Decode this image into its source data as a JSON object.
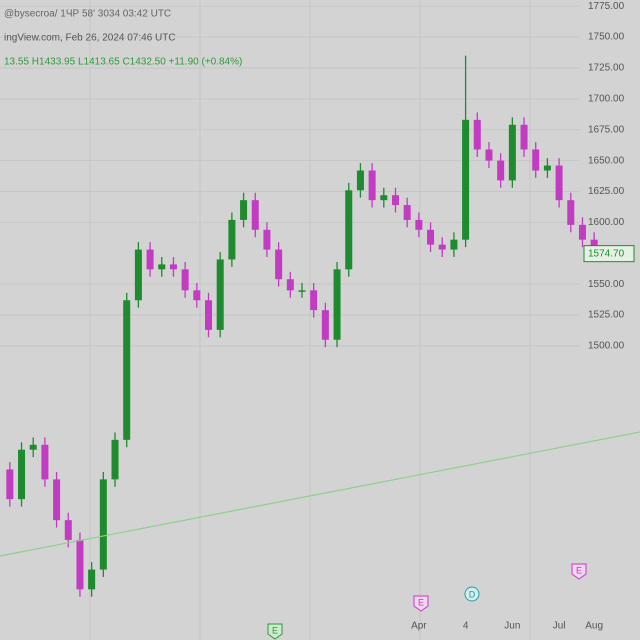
{
  "chart_data": {
    "type": "candlestick",
    "title": "ingView.com, Feb 26, 2024 07:46 UTC",
    "subtitle": "@bysecroa/ 1ЧР 58' 3034 03:42 UTC",
    "ohlc_text": "13.55 H1433.95 L1413.65 C1432.50 +11.90 (+0.84%)",
    "price_label": "1574.70",
    "up_color": "#1e8c2e",
    "down_color": "#c23cc2",
    "ylim": [
      1262,
      1780
    ],
    "yticks": [
      {
        "value": 1775,
        "label": "1775.00"
      },
      {
        "value": 1750,
        "label": "1750.00"
      },
      {
        "value": 1725,
        "label": "1725.00"
      },
      {
        "value": 1700,
        "label": "1700.00"
      },
      {
        "value": 1675,
        "label": "1675.00"
      },
      {
        "value": 1650,
        "label": "1650.00"
      },
      {
        "value": 1625,
        "label": "1625.00"
      },
      {
        "value": 1600,
        "label": "1600.00"
      },
      {
        "value": 1550,
        "label": "1550.00"
      },
      {
        "value": 1525,
        "label": "1525.00"
      },
      {
        "value": 1500,
        "label": "1500.00"
      }
    ],
    "grid": true,
    "categories": [
      null,
      null,
      null,
      null,
      null,
      null,
      null,
      null,
      null,
      null,
      null,
      null,
      null,
      null,
      null,
      null,
      null,
      null,
      null,
      null,
      null,
      null,
      null,
      null,
      null,
      null,
      null,
      null,
      null,
      null,
      null,
      null,
      null,
      null,
      null,
      "Apr",
      null,
      null,
      null,
      "4",
      null,
      null,
      null,
      "Jun",
      null,
      null,
      null,
      "Jul",
      null,
      null,
      "Aug"
    ],
    "open": [
      1400,
      1376,
      1416,
      1420,
      1392,
      1359,
      1343,
      1303,
      1319,
      1392,
      1424,
      1537,
      1578,
      1562,
      1566,
      1562,
      1545,
      1537,
      1513,
      1570,
      1602,
      1618,
      1594,
      1578,
      1554,
      1545,
      1545,
      1529,
      1505,
      1562,
      1626,
      1642,
      1618,
      1622,
      1614,
      1602,
      1594,
      1582,
      1578,
      1586,
      1683,
      1659,
      1650,
      1634,
      1679,
      1659,
      1642,
      1646,
      1618,
      1598,
      1586
    ],
    "high": [
      1406,
      1422,
      1426,
      1426,
      1398,
      1365,
      1349,
      1325,
      1398,
      1430,
      1543,
      1584,
      1584,
      1572,
      1572,
      1568,
      1551,
      1543,
      1576,
      1608,
      1624,
      1624,
      1600,
      1584,
      1560,
      1551,
      1551,
      1535,
      1568,
      1632,
      1648,
      1648,
      1628,
      1628,
      1620,
      1608,
      1600,
      1588,
      1592,
      1735,
      1689,
      1665,
      1656,
      1685,
      1685,
      1665,
      1652,
      1652,
      1624,
      1604,
      1592
    ],
    "low": [
      1370,
      1370,
      1410,
      1386,
      1353,
      1337,
      1297,
      1297,
      1313,
      1386,
      1418,
      1531,
      1556,
      1556,
      1556,
      1539,
      1531,
      1507,
      1507,
      1564,
      1596,
      1588,
      1572,
      1548,
      1539,
      1539,
      1523,
      1499,
      1499,
      1556,
      1620,
      1612,
      1612,
      1608,
      1596,
      1588,
      1576,
      1572,
      1572,
      1580,
      1653,
      1644,
      1628,
      1628,
      1653,
      1636,
      1636,
      1612,
      1592,
      1580,
      1568.7
    ],
    "close": [
      1376,
      1416,
      1420,
      1392,
      1359,
      1343,
      1303,
      1319,
      1392,
      1424,
      1537,
      1578,
      1562,
      1566,
      1562,
      1545,
      1537,
      1513,
      1570,
      1602,
      1618,
      1594,
      1578,
      1554,
      1545,
      1545,
      1529,
      1505,
      1562,
      1626,
      1642,
      1618,
      1622,
      1614,
      1602,
      1594,
      1582,
      1578,
      1586,
      1683,
      1659,
      1650,
      1634,
      1679,
      1659,
      1642,
      1646,
      1618,
      1598,
      1586,
      1574.7
    ],
    "events": [
      "E",
      "E",
      "D",
      "E"
    ]
  }
}
